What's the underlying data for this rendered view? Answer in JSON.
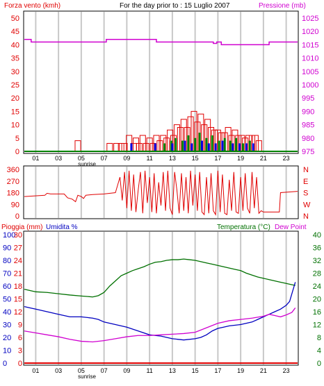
{
  "colors": {
    "wind": "#e00000",
    "pressure": "#d000d0",
    "rain": "#e00000",
    "humidity": "#0000c0",
    "temperature": "#007000",
    "dewpoint": "#d000d0",
    "gust_green": "#008000",
    "gust_blue": "#0000e0",
    "grid": "#c8c8c8",
    "frame": "#000000",
    "background": "#ffffff"
  },
  "chart_data": [
    {
      "type": "bar",
      "title": "For the day prior to : 15 Luglio 2007",
      "ylabel": "Forza vento (kmh)",
      "ylabel_right": "Pressione (mb)",
      "ylim": [
        0,
        50
      ],
      "ylim_right": [
        975,
        1025
      ],
      "yticks": [
        0,
        5,
        10,
        15,
        20,
        25,
        30,
        35,
        40,
        45,
        50
      ],
      "yticks_right": [
        975,
        980,
        985,
        990,
        995,
        1000,
        1005,
        1010,
        1015,
        1020,
        1025
      ],
      "xticks": [
        "01",
        "03",
        "05",
        "07",
        "09",
        "11",
        "13",
        "15",
        "17",
        "19",
        "21",
        "23"
      ],
      "sunrise_label": "sunrise",
      "sunrise_hour": 5.5,
      "series": [
        {
          "name": "Pressione (mb)",
          "type": "step",
          "x": [
            0,
            0.6,
            0.6,
            7.2,
            7.2,
            11.6,
            11.6,
            16.6,
            16.6,
            16.9,
            16.9,
            17.3,
            17.3,
            21.5,
            21.5,
            24
          ],
          "values": [
            1017,
            1017,
            1016,
            1016,
            1017,
            1017,
            1016,
            1016,
            1015.5,
            1015.5,
            1016,
            1016,
            1015,
            1015,
            1016,
            1016
          ]
        },
        {
          "name": "Forza vento (kmh)",
          "type": "bar",
          "x": [
            4.7,
            7.5,
            8.1,
            8.5,
            8.8,
            9.2,
            9.6,
            9.8,
            10.1,
            10.4,
            10.7,
            11.0,
            11.3,
            11.6,
            11.9,
            12.2,
            12.5,
            12.8,
            13.1,
            13.4,
            13.7,
            14.0,
            14.3,
            14.6,
            14.9,
            15.2,
            15.5,
            15.8,
            16.1,
            16.4,
            16.7,
            17.0,
            17.3,
            17.6,
            17.9,
            18.2,
            18.5,
            18.8,
            19.1,
            19.4,
            19.7,
            20.0,
            20.3,
            20.6
          ],
          "values": [
            4,
            3,
            3,
            3,
            3,
            6,
            3,
            5,
            3,
            6,
            3,
            5,
            3,
            6,
            4,
            6,
            5,
            8,
            6,
            10,
            9,
            12,
            9,
            13,
            15,
            11,
            14,
            10,
            12,
            9,
            8,
            8,
            7,
            7,
            9,
            6,
            8,
            6,
            6,
            5,
            6,
            6,
            6,
            4
          ]
        },
        {
          "name": "gust-green",
          "type": "bar",
          "x": [
            12.3,
            12.9,
            13.3,
            13.9,
            14.4,
            15.0,
            15.4,
            16.0,
            16.5,
            17.1,
            17.6,
            18.1,
            18.6,
            19.2,
            19.8
          ],
          "values": [
            3,
            4,
            5,
            4,
            6,
            5,
            7,
            5,
            6,
            4,
            5,
            4,
            5,
            3,
            4
          ]
        },
        {
          "name": "gust-blue",
          "type": "bar",
          "x": [
            9.4,
            11.5,
            13.0,
            14.1,
            14.7,
            15.6,
            16.2,
            16.8,
            17.4,
            18.3,
            18.9,
            19.5,
            20.1
          ],
          "values": [
            3,
            3,
            3,
            4,
            3,
            4,
            3,
            3,
            4,
            3,
            3,
            3,
            3
          ]
        }
      ]
    },
    {
      "type": "line",
      "yticks": [
        0,
        90,
        180,
        270,
        360
      ],
      "ylim": [
        0,
        360
      ],
      "yticks_right": [
        "N",
        "W",
        "S",
        "E",
        "N"
      ],
      "series": [
        {
          "name": "wind-direction",
          "x": [
            0,
            1.8,
            2.0,
            2.3,
            3.5,
            3.8,
            4.2,
            4.5,
            4.7,
            5.0,
            5.2,
            5.4,
            6.0,
            7.0,
            8.0,
            8.2,
            8.4,
            8.6,
            8.8,
            9.0,
            9.2,
            9.4,
            9.6,
            9.8,
            10.0,
            10.2,
            10.4,
            10.6,
            10.8,
            11.0,
            11.2,
            11.4,
            11.6,
            11.8,
            12.0,
            12.2,
            12.4,
            12.6,
            12.8,
            13.0,
            13.2,
            13.4,
            13.6,
            13.8,
            14.0,
            14.2,
            14.4,
            14.6,
            14.8,
            15.0,
            15.2,
            15.4,
            15.6,
            15.8,
            16.0,
            16.2,
            16.4,
            16.6,
            16.8,
            17.0,
            17.2,
            17.4,
            17.6,
            17.8,
            18.0,
            18.2,
            18.4,
            18.6,
            18.8,
            19.0,
            19.2,
            19.4,
            19.6,
            19.8,
            20.0,
            20.2,
            20.4,
            20.6,
            20.8,
            21.0,
            21.3,
            22.4,
            22.5,
            24
          ],
          "values": [
            150,
            160,
            175,
            170,
            170,
            140,
            130,
            110,
            160,
            150,
            135,
            160,
            165,
            170,
            180,
            240,
            300,
            120,
            340,
            60,
            350,
            40,
            320,
            30,
            200,
            340,
            20,
            350,
            100,
            300,
            30,
            330,
            20,
            260,
            80,
            340,
            40,
            350,
            60,
            10,
            340,
            200,
            20,
            330,
            40,
            300,
            20,
            350,
            80,
            320,
            40,
            340,
            30,
            10,
            300,
            20,
            330,
            40,
            10,
            350,
            30,
            320,
            20,
            10,
            280,
            40,
            340,
            30,
            20,
            300,
            40,
            330,
            60,
            20,
            340,
            60,
            300,
            20,
            40,
            30,
            30,
            30,
            180,
            190
          ]
        }
      ]
    },
    {
      "type": "line",
      "ylabel": "Pioggia (mm)",
      "ylabel2": "Umidita %",
      "ylabel_right": "Temperatura (°C)",
      "ylabel_right2": "Dew Point",
      "rain_ticks": [
        0,
        3,
        6,
        9,
        12,
        15,
        18,
        21,
        24,
        27,
        30
      ],
      "humidity_ticks": [
        0,
        10,
        20,
        30,
        40,
        50,
        60,
        70,
        80,
        90,
        100
      ],
      "temp_ticks": [
        0,
        4,
        8,
        12,
        16,
        20,
        24,
        28,
        32,
        36,
        40
      ],
      "xticks": [
        "01",
        "03",
        "05",
        "07",
        "09",
        "11",
        "13",
        "15",
        "17",
        "19",
        "21",
        "23"
      ],
      "sunrise_label": "sunrise",
      "series": [
        {
          "name": "Temperatura (°C)",
          "axis": "temp",
          "x": [
            0,
            0.5,
            1.0,
            2.0,
            3.0,
            4.0,
            5.0,
            6.0,
            6.5,
            7.0,
            7.5,
            8.0,
            8.5,
            9.0,
            9.5,
            10.0,
            10.5,
            11.0,
            11.5,
            12.0,
            12.5,
            13.0,
            13.5,
            14.0,
            14.5,
            15.0,
            15.5,
            16.0,
            16.5,
            17.0,
            17.5,
            18.0,
            18.5,
            19.0,
            19.5,
            20.0,
            20.5,
            21.0,
            21.5,
            22.0,
            22.5,
            23.0,
            23.5,
            23.8
          ],
          "values": [
            23,
            22.6,
            22.2,
            22.0,
            21.6,
            21.2,
            20.9,
            20.6,
            21.0,
            22.0,
            24.0,
            25.6,
            27.2,
            28.0,
            28.8,
            29.4,
            30.0,
            30.8,
            31.4,
            31.6,
            32.0,
            32.2,
            32.2,
            32.4,
            32.2,
            32.0,
            31.6,
            31.2,
            30.8,
            30.4,
            30.0,
            29.6,
            29.2,
            28.8,
            28.0,
            27.4,
            26.8,
            26.4,
            26.0,
            25.6,
            25.2,
            24.8,
            24.4,
            24.2
          ]
        },
        {
          "name": "Umidita %",
          "axis": "humidity",
          "x": [
            0,
            0.5,
            1.0,
            1.5,
            2.0,
            3.0,
            4.0,
            5.0,
            6.0,
            6.5,
            7.0,
            7.5,
            8.0,
            9.0,
            10.0,
            11.0,
            12.0,
            12.5,
            13.0,
            14.0,
            15.0,
            15.5,
            16.0,
            16.5,
            17.0,
            17.5,
            18.0,
            19.0,
            20.0,
            20.5,
            21.0,
            21.5,
            22.0,
            22.5,
            23.0,
            23.3,
            23.5,
            23.7,
            23.8
          ],
          "values": [
            44,
            43,
            42,
            41,
            40,
            38,
            36,
            36,
            35,
            34,
            32,
            31,
            30,
            28,
            25,
            22,
            21,
            20,
            19,
            18,
            19,
            20,
            22,
            25,
            27,
            28,
            29,
            30,
            32,
            34,
            36,
            38,
            40,
            42,
            45,
            48,
            54,
            60,
            63
          ]
        },
        {
          "name": "Dew Point",
          "axis": "temp",
          "x": [
            0,
            1.0,
            2.0,
            3.0,
            4.0,
            5.0,
            6.0,
            7.0,
            8.0,
            9.0,
            10.0,
            11.0,
            12.0,
            13.0,
            14.0,
            15.0,
            16.0,
            17.0,
            18.0,
            19.0,
            20.0,
            21.0,
            21.5,
            22.0,
            22.5,
            23.0,
            23.5,
            23.8
          ],
          "values": [
            10.0,
            9.4,
            8.8,
            8.2,
            7.4,
            6.8,
            6.6,
            7.0,
            7.6,
            8.2,
            8.6,
            8.6,
            8.8,
            9.0,
            9.2,
            9.6,
            11.0,
            12.4,
            13.2,
            13.6,
            14.0,
            14.6,
            15.2,
            14.8,
            14.4,
            15.0,
            15.8,
            17.2
          ]
        },
        {
          "name": "Pioggia (mm)",
          "axis": "rain",
          "x": [
            0,
            24
          ],
          "values": [
            0,
            0
          ]
        }
      ]
    }
  ]
}
